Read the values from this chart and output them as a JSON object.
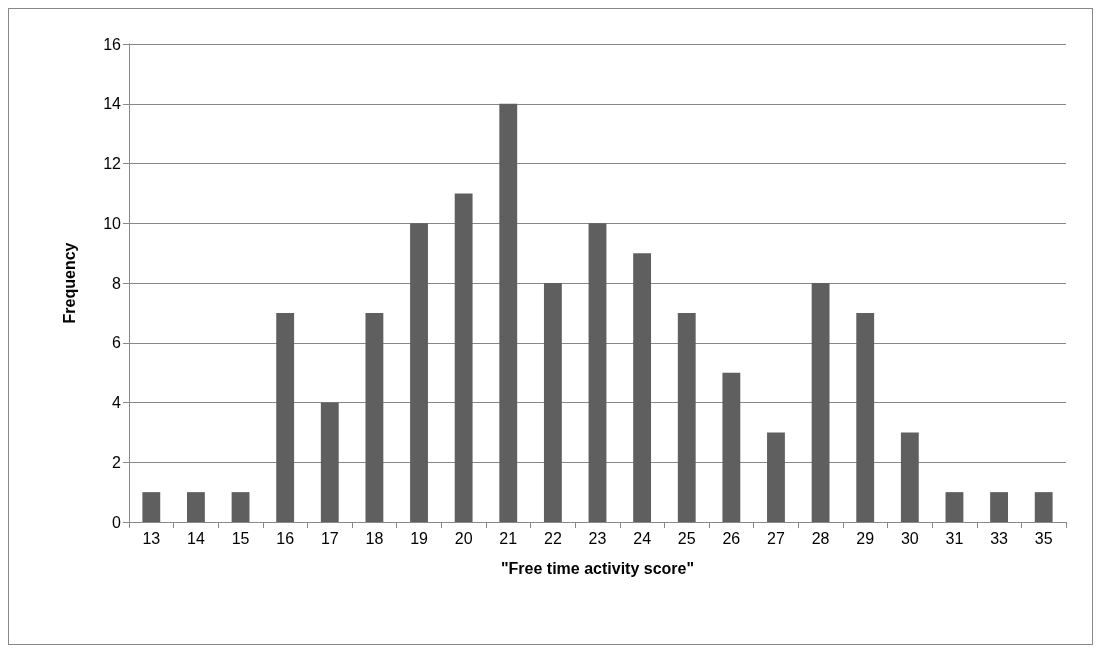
{
  "chart_data": {
    "type": "bar",
    "xlabel": "\"Free time activity score\"",
    "ylabel": "Frequency",
    "categories": [
      "13",
      "14",
      "15",
      "16",
      "17",
      "18",
      "19",
      "20",
      "21",
      "22",
      "23",
      "24",
      "25",
      "26",
      "27",
      "28",
      "29",
      "30",
      "31",
      "33",
      "35"
    ],
    "values": [
      1,
      1,
      1,
      7,
      4,
      7,
      10,
      11,
      14,
      8,
      10,
      9,
      7,
      5,
      3,
      8,
      7,
      3,
      1,
      1,
      1
    ],
    "color": "#5f5f5f",
    "ylim": [
      0,
      16
    ],
    "yticks": [
      0,
      2,
      4,
      6,
      8,
      10,
      12,
      14,
      16
    ],
    "grid": "y"
  }
}
